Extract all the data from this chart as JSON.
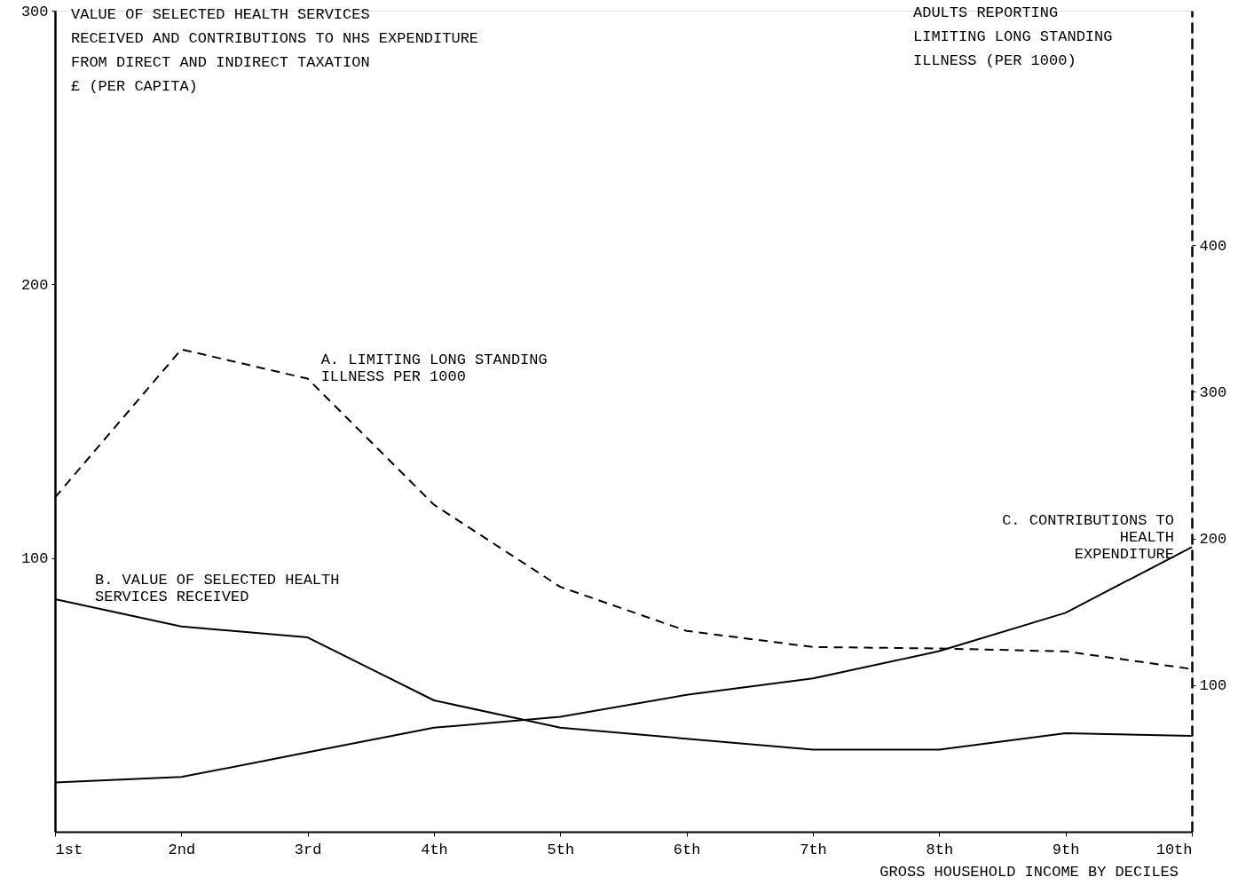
{
  "chart_data": {
    "type": "line",
    "categories": [
      "1st",
      "2nd",
      "3rd",
      "4th",
      "5th",
      "6th",
      "7th",
      "8th",
      "9th",
      "10th"
    ],
    "xlabel": "GROSS HOUSEHOLD INCOME BY DECILES",
    "ylabel": "VALUE OF SELECTED HEALTH SERVICES\nRECEIVED AND CONTRIBUTIONS TO NHS EXPENDITURE\nFROM DIRECT AND INDIRECT TAXATION\n£ (PER CAPITA)",
    "y2label": "ADULTS REPORTING\nLIMITING LONG STANDING\nILLNESS (PER 1000)",
    "ylim": [
      0,
      300
    ],
    "yticks": [
      100,
      200,
      300
    ],
    "y2lim": [
      0,
      560
    ],
    "y2ticks": [
      100,
      200,
      300,
      400
    ],
    "grid": false,
    "marker": "none",
    "series": [
      {
        "name": "A. LIMITING LONG STANDING\n     ILLNESS PER 1000",
        "color": "#000000",
        "axis": "y2",
        "line_style": "dashed",
        "values": [
          228,
          329,
          309,
          223,
          167,
          137,
          126,
          125,
          123,
          111
        ]
      },
      {
        "name": "B.  VALUE OF SELECTED HEALTH\n          SERVICES RECEIVED",
        "color": "#000000",
        "line_style": "solid",
        "values": [
          85,
          75,
          71,
          48,
          38,
          34,
          30,
          30,
          36,
          35
        ]
      },
      {
        "name": "C.  CONTRIBUTIONS TO\n    HEALTH\n    EXPENDITURE",
        "color": "#000000",
        "line_style": "solid",
        "values": [
          18,
          20,
          29,
          38,
          42,
          50,
          56,
          66,
          80,
          104
        ]
      }
    ]
  }
}
